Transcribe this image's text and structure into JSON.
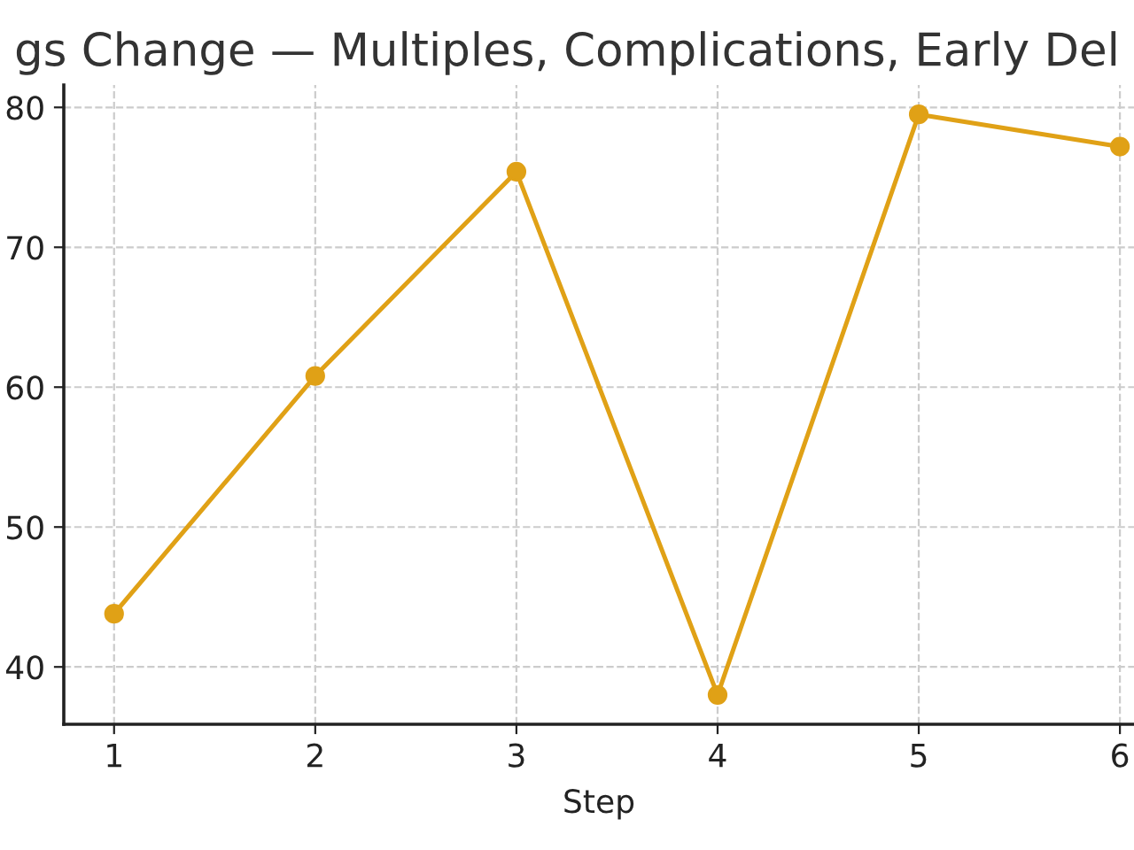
{
  "chart_data": {
    "type": "line",
    "title": "gs Change — Multiples, Complications, Early Del",
    "xlabel": "Step",
    "x": [
      1,
      2,
      3,
      4,
      5,
      6
    ],
    "series": [
      {
        "color": "#e0a116",
        "values": [
          43.8,
          60.8,
          75.4,
          38.0,
          79.5,
          77.2
        ]
      }
    ],
    "xlim": [
      0.75,
      6.07
    ],
    "ylim": [
      35.9,
      81.6
    ],
    "xticks": [
      1,
      2,
      3,
      4,
      5,
      6
    ],
    "yticks": [
      40,
      50,
      60,
      70,
      80
    ],
    "grid": true,
    "marker": "circle",
    "line_style": "solid"
  }
}
